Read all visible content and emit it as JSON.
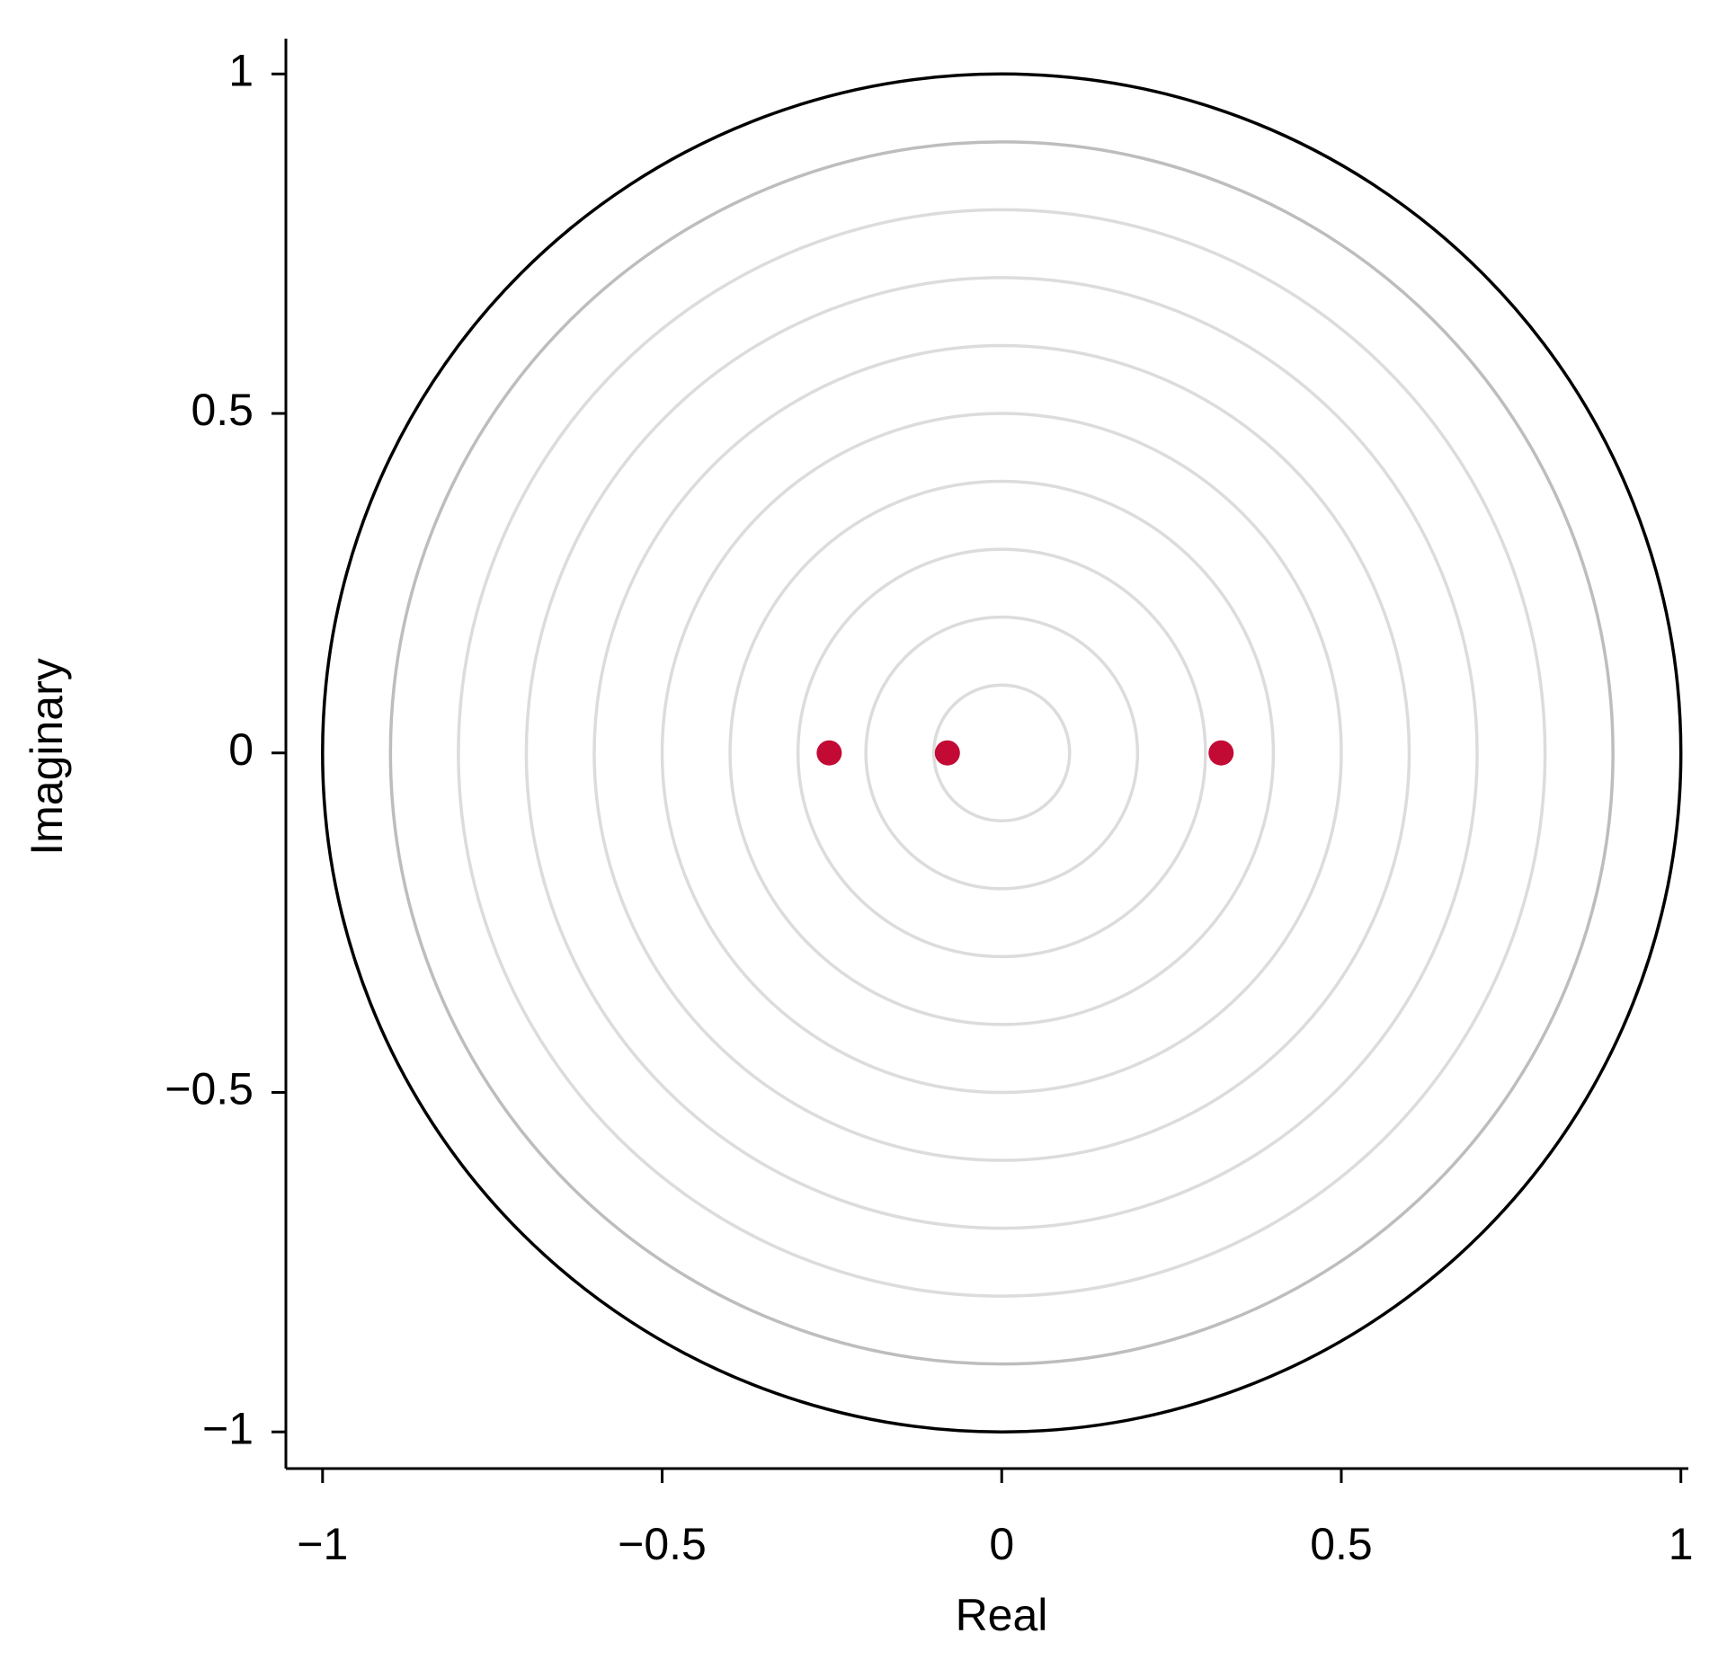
{
  "chart_data": {
    "type": "scatter",
    "xlabel": "Real",
    "ylabel": "Imaginary",
    "x": [
      -0.254,
      -0.08,
      0.323
    ],
    "series": [
      {
        "color": "#c20a35",
        "values": [
          0,
          0,
          0
        ]
      }
    ],
    "circles": [
      {
        "r": 0.1,
        "color": "#dcdcdc"
      },
      {
        "r": 0.2,
        "color": "#dcdcdc"
      },
      {
        "r": 0.3,
        "color": "#dcdcdc"
      },
      {
        "r": 0.4,
        "color": "#dcdcdc"
      },
      {
        "r": 0.5,
        "color": "#dcdcdc"
      },
      {
        "r": 0.6,
        "color": "#dcdcdc"
      },
      {
        "r": 0.7,
        "color": "#dcdcdc"
      },
      {
        "r": 0.8,
        "color": "#dcdcdc"
      },
      {
        "r": 0.9,
        "color": "#bdbdbd"
      },
      {
        "r": 1,
        "color": "#000000"
      }
    ],
    "xlim": [
      -1.054,
      1.011
    ],
    "ylim": [
      -1.054,
      1.052
    ],
    "xticks": [
      {
        "value": -1,
        "label": "−1"
      },
      {
        "value": -0.5,
        "label": "−0.5"
      },
      0,
      0.5,
      1
    ],
    "yticks": [
      {
        "value": -1,
        "label": "−1"
      },
      {
        "value": -0.5,
        "label": "−0.5"
      },
      0,
      0.5,
      1
    ]
  }
}
